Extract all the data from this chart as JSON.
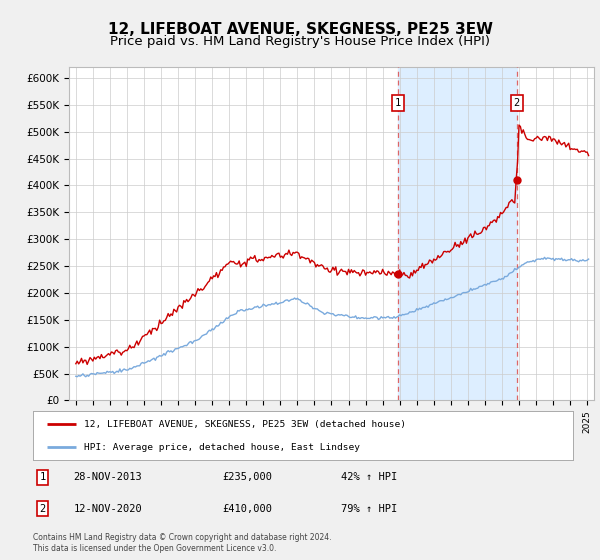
{
  "title": "12, LIFEBOAT AVENUE, SKEGNESS, PE25 3EW",
  "subtitle": "Price paid vs. HM Land Registry's House Price Index (HPI)",
  "title_fontsize": 11,
  "subtitle_fontsize": 9.5,
  "legend_line1": "12, LIFEBOAT AVENUE, SKEGNESS, PE25 3EW (detached house)",
  "legend_line2": "HPI: Average price, detached house, East Lindsey",
  "footer": "Contains HM Land Registry data © Crown copyright and database right 2024.\nThis data is licensed under the Open Government Licence v3.0.",
  "sale1_date": "28-NOV-2013",
  "sale1_price": "£235,000",
  "sale1_hpi": "42% ↑ HPI",
  "sale1_year": 2013.91,
  "sale1_price_val": 235000,
  "sale2_date": "12-NOV-2020",
  "sale2_price": "£410,000",
  "sale2_hpi": "79% ↑ HPI",
  "sale2_year": 2020.87,
  "sale2_price_val": 410000,
  "red_color": "#cc0000",
  "blue_color": "#7aaadd",
  "shade_color": "#ddeeff",
  "ylim": [
    0,
    620000
  ],
  "yticks": [
    0,
    50000,
    100000,
    150000,
    200000,
    250000,
    300000,
    350000,
    400000,
    450000,
    500000,
    550000,
    600000
  ],
  "ytick_labels": [
    "£0",
    "£50K",
    "£100K",
    "£150K",
    "£200K",
    "£250K",
    "£300K",
    "£350K",
    "£400K",
    "£450K",
    "£500K",
    "£550K",
    "£600K"
  ],
  "background_color": "#f0f0f0",
  "plot_bg": "#ffffff",
  "grid_color": "#cccccc",
  "xlim_left": 1994.6,
  "xlim_right": 2025.4
}
